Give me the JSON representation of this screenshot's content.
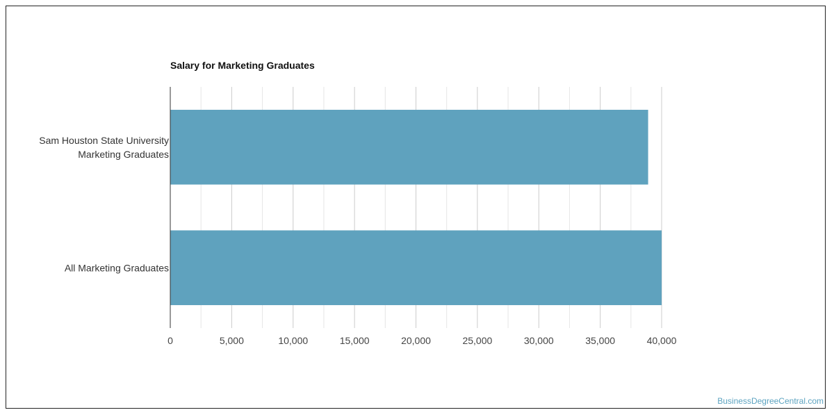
{
  "watermark": "BusinessDegreeCentral.com",
  "colors": {
    "bar": "#5fa2be",
    "grid_major": "#cccccc",
    "grid_minor": "#e6e6e6",
    "axis": "#333333"
  },
  "chart_data": {
    "type": "bar",
    "orientation": "horizontal",
    "title": "Salary for Marketing Graduates",
    "xlabel": "",
    "ylabel": "",
    "categories": [
      [
        "Sam Houston State University",
        "Marketing Graduates"
      ],
      [
        "All Marketing Graduates"
      ]
    ],
    "values": [
      38900,
      40000
    ],
    "xlim": [
      0,
      40000
    ],
    "ticks": [
      0,
      5000,
      10000,
      15000,
      20000,
      25000,
      30000,
      35000,
      40000
    ],
    "tick_labels": [
      "0",
      "5,000",
      "10,000",
      "15,000",
      "20,000",
      "25,000",
      "30,000",
      "35,000",
      "40,000"
    ],
    "grid": true,
    "legend": "none"
  }
}
